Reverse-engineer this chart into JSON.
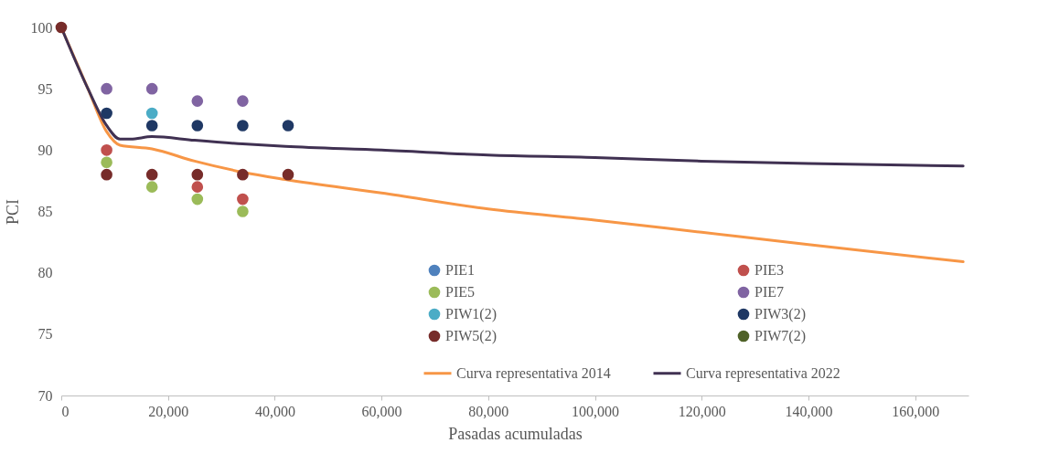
{
  "chart_data": {
    "type": "scatter",
    "xlabel": "Pasadas acumuladas",
    "ylabel": "PCI",
    "xlim": [
      0,
      170000
    ],
    "xticks": [
      {
        "value": 0,
        "label": "0"
      },
      {
        "value": 20000,
        "label": "20,000"
      },
      {
        "value": 40000,
        "label": "40,000"
      },
      {
        "value": 60000,
        "label": "60,000"
      },
      {
        "value": 80000,
        "label": "80,000"
      },
      {
        "value": 100000,
        "label": "100,000"
      },
      {
        "value": 120000,
        "label": "120,000"
      },
      {
        "value": 140000,
        "label": "140,000"
      },
      {
        "value": 160000,
        "label": "160,000"
      }
    ],
    "ylim": [
      70,
      100
    ],
    "yticks": [
      70,
      75,
      80,
      85,
      90,
      95,
      100
    ],
    "legend": "bottom right",
    "marker": "circle",
    "series": [
      {
        "name": "PIE1",
        "color": "#4f81bd"
      },
      {
        "name": "PIE3",
        "color": "#c0504d",
        "x": [
          8500,
          25500,
          34000
        ],
        "values": [
          90,
          87,
          86
        ]
      },
      {
        "name": "PIE5",
        "color": "#9bbb59",
        "x": [
          8500,
          17000,
          25500,
          34000
        ],
        "values": [
          89,
          87,
          86,
          85
        ]
      },
      {
        "name": "PIE7",
        "color": "#8064a2",
        "x": [
          8500,
          17000,
          25500,
          34000
        ],
        "values": [
          95,
          95,
          94,
          94
        ]
      },
      {
        "name": "PIW1(2)",
        "color": "#4bacc6",
        "x": [
          17000
        ],
        "values": [
          93
        ]
      },
      {
        "name": "PIW3(2)",
        "color": "#1f3864",
        "x": [
          8500,
          17000,
          25500,
          34000,
          42500
        ],
        "values": [
          93,
          92,
          92,
          92,
          92
        ]
      },
      {
        "name": "PIW5(2)",
        "color": "#772c2a",
        "x": [
          0,
          8500,
          17000,
          25500,
          34000,
          42500
        ],
        "values": [
          100,
          88,
          88,
          88,
          88,
          88
        ]
      },
      {
        "name": "PIW7(2)",
        "color": "#4f6228"
      },
      {
        "name": "Curva representativa 2014",
        "type": "line",
        "marker": "none",
        "color": "#f79646",
        "x": [
          0,
          5000,
          8500,
          11000,
          17000,
          25000,
          34000,
          42000,
          60000,
          80000,
          100000,
          120000,
          140000,
          169000
        ],
        "values": [
          100,
          95,
          91.5,
          90.4,
          90.1,
          89.1,
          88.2,
          87.6,
          86.5,
          85.2,
          84.3,
          83.3,
          82.3,
          80.9
        ]
      },
      {
        "name": "Curva representativa 2022",
        "type": "line",
        "marker": "none",
        "color": "#403152",
        "x": [
          0,
          5000,
          8500,
          11000,
          13000,
          17000,
          25000,
          34000,
          42000,
          60000,
          80000,
          100000,
          120000,
          140000,
          169000
        ],
        "values": [
          100,
          95,
          92,
          90.9,
          90.9,
          91.1,
          90.8,
          90.5,
          90.3,
          90,
          89.6,
          89.4,
          89.1,
          88.9,
          88.7
        ]
      }
    ]
  }
}
